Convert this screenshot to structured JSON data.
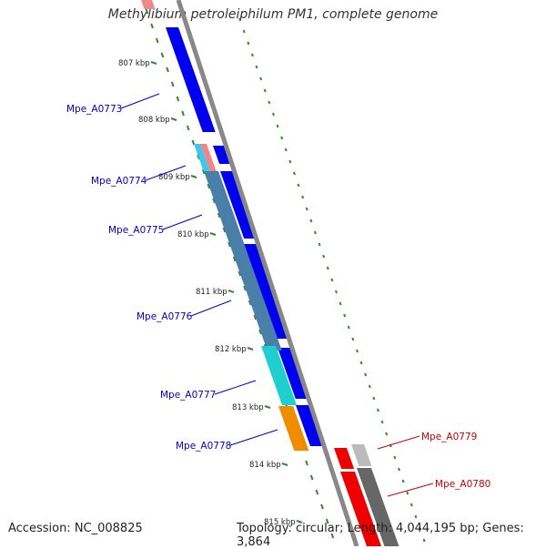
{
  "title": "Methylibium petroleiphilum PM1, complete genome",
  "footer": {
    "accession": "Accession: NC_008825",
    "summary": "Topology: circular; Length: 4,044,195 bp; Genes: 3,864"
  },
  "colors": {
    "minus_label": "#0000cc",
    "plus_label": "#cc0000",
    "minus_gene": "#0000ee",
    "plus_gene": "#ee0000",
    "backbone": "#888888",
    "ticks": "#2e8b2e"
  },
  "ticks": [
    {
      "label": "807 kbp"
    },
    {
      "label": "808 kbp"
    },
    {
      "label": "809 kbp"
    },
    {
      "label": "810 kbp"
    },
    {
      "label": "811 kbp"
    },
    {
      "label": "812 kbp"
    },
    {
      "label": "813 kbp"
    },
    {
      "label": "814 kbp"
    },
    {
      "label": "815 kbp"
    }
  ],
  "gene_labels": [
    {
      "id": "Mpe_A0773",
      "strand": "minus"
    },
    {
      "id": "Mpe_A0774",
      "strand": "minus"
    },
    {
      "id": "Mpe_A0775",
      "strand": "minus"
    },
    {
      "id": "Mpe_A0776",
      "strand": "minus"
    },
    {
      "id": "Mpe_A0777",
      "strand": "minus"
    },
    {
      "id": "Mpe_A0778",
      "strand": "minus"
    },
    {
      "id": "Mpe_A0779",
      "strand": "plus"
    },
    {
      "id": "Mpe_A0780",
      "strand": "plus"
    }
  ]
}
